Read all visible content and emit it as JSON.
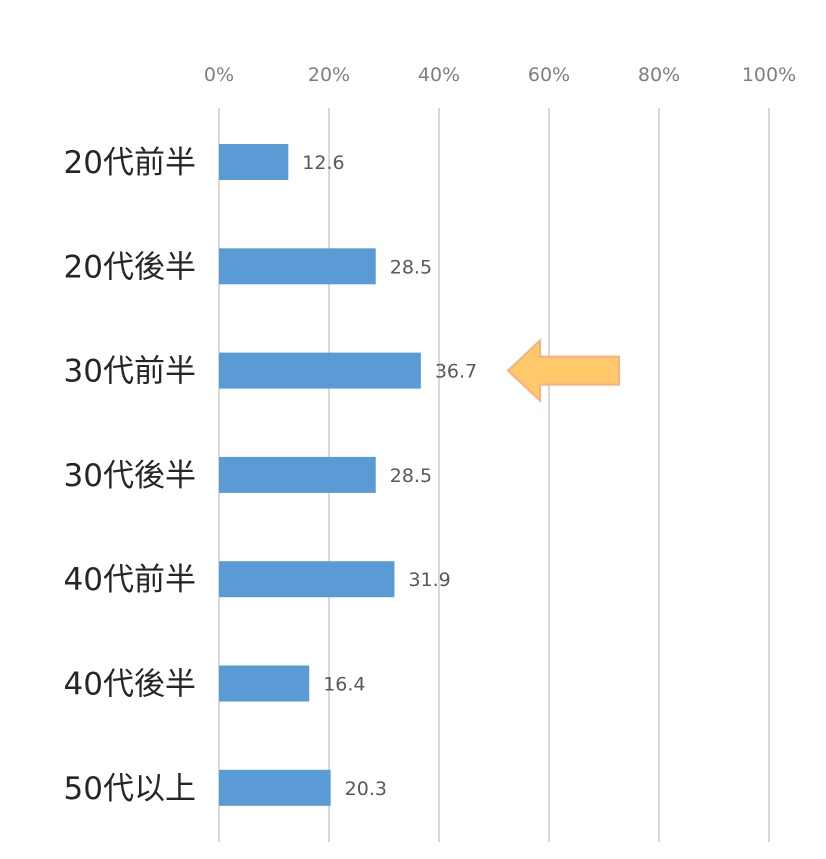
{
  "chart_data": {
    "type": "bar",
    "orientation": "horizontal",
    "categories": [
      "20代前半",
      "20代後半",
      "30代前半",
      "30代後半",
      "40代前半",
      "40代後半",
      "50代以上"
    ],
    "values": [
      12.6,
      28.5,
      36.7,
      28.5,
      31.9,
      16.4,
      20.3
    ],
    "value_labels": [
      "12.6",
      "28.5",
      "36.7",
      "28.5",
      "31.9",
      "16.4",
      "20.3"
    ],
    "xlim": [
      0,
      100
    ],
    "x_ticks": [
      "0%",
      "20%",
      "40%",
      "60%",
      "80%",
      "100%"
    ],
    "x_tick_values": [
      0,
      20,
      40,
      60,
      80,
      100
    ],
    "x_axis_position": "top",
    "grid": true,
    "legend": "none",
    "highlight": {
      "category": "30代前半",
      "marker": "left-pointing arrow"
    },
    "colors": {
      "bar": "#5b9bd5",
      "grid": "#d9d9d9",
      "arrow_fill": "#ffc869",
      "arrow_stroke": "#f4b183"
    }
  }
}
